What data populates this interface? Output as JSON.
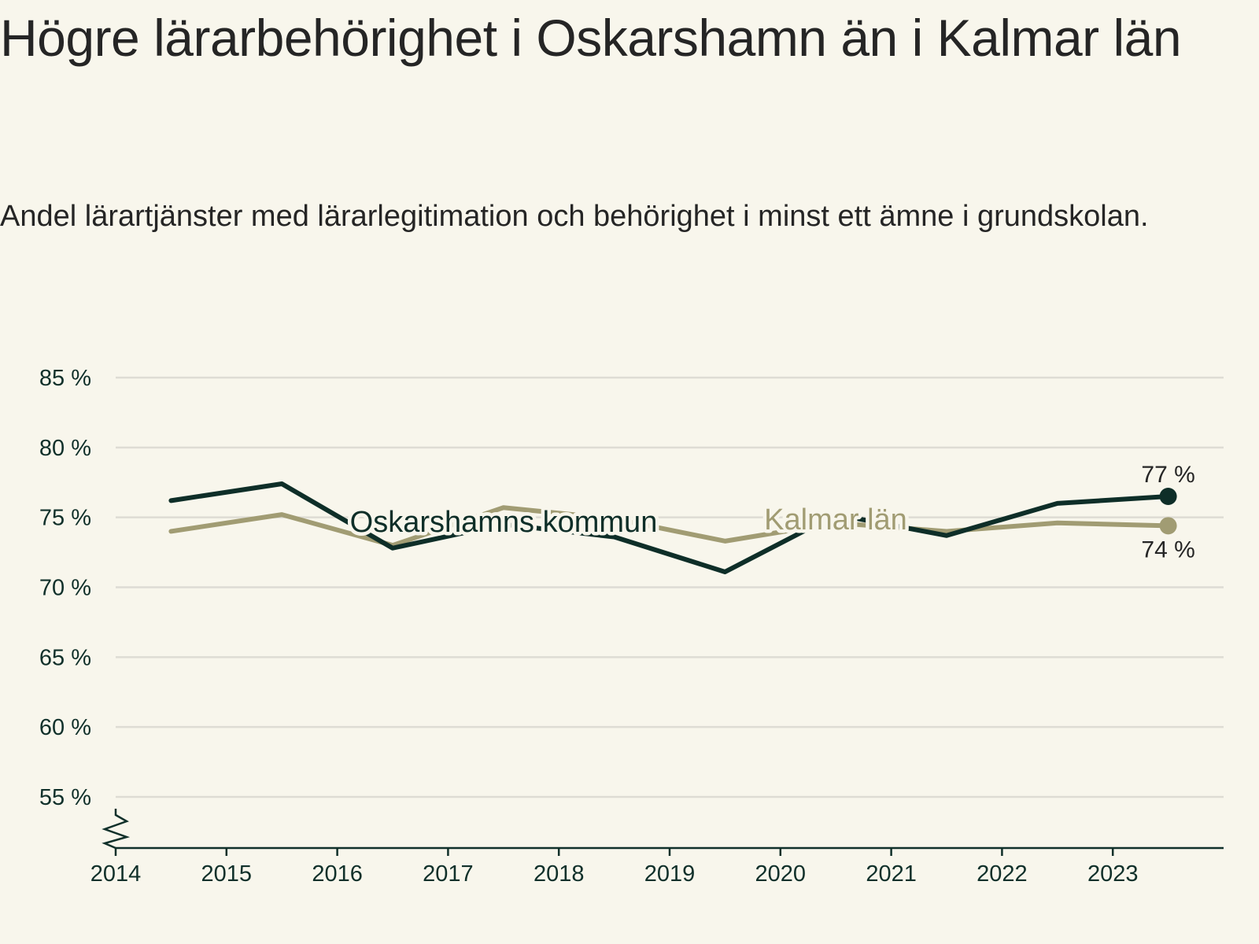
{
  "title": "Högre lärarbehörighet i Oskarshamn än i Kalmar län",
  "subtitle": "Andel lärartjänster med lärarlegitimation och behörighet i minst ett ämne i grundskolan.",
  "colors": {
    "oskarshamn": "#0e2e28",
    "kalmar": "#a19c73",
    "background": "#f8f6ec",
    "grid": "#dedcd4"
  },
  "chart_data": {
    "type": "line",
    "title": "Högre lärarbehörighet i Oskarshamn än i Kalmar län",
    "subtitle": "Andel lärartjänster med lärarlegitimation och behörighet i minst ett ämne i grundskolan.",
    "xlabel": "",
    "ylabel": "",
    "x_ticks": [
      "2014",
      "2015",
      "2016",
      "2017",
      "2018",
      "2019",
      "2020",
      "2021",
      "2022",
      "2023"
    ],
    "xlim": [
      2014,
      2024
    ],
    "ylim": [
      52,
      85
    ],
    "y_ticks": [
      55,
      60,
      65,
      70,
      75,
      80,
      85
    ],
    "y_tick_labels": [
      "55 %",
      "60 %",
      "65 %",
      "70 %",
      "75 %",
      "80 %",
      "85 %"
    ],
    "axis_break": true,
    "grid": true,
    "series": [
      {
        "name": "Oskarshamns kommun",
        "color": "#0e2e28",
        "x": [
          2014.5,
          2015.5,
          2016.5,
          2017.5,
          2018.5,
          2019.5,
          2020.5,
          2021.5,
          2022.5,
          2023.5
        ],
        "values": [
          76.2,
          77.4,
          72.8,
          74.5,
          73.6,
          71.1,
          75.2,
          73.7,
          76.0,
          76.5
        ],
        "end_label": "77 %"
      },
      {
        "name": "Kalmar län",
        "color": "#a19c73",
        "x": [
          2014.5,
          2015.5,
          2016.5,
          2017.5,
          2018.5,
          2019.5,
          2020.5,
          2021.5,
          2022.5,
          2023.5
        ],
        "values": [
          74.0,
          75.2,
          73.0,
          75.7,
          74.9,
          73.3,
          74.6,
          74.0,
          74.6,
          74.4
        ],
        "end_label": "74 %"
      }
    ]
  }
}
